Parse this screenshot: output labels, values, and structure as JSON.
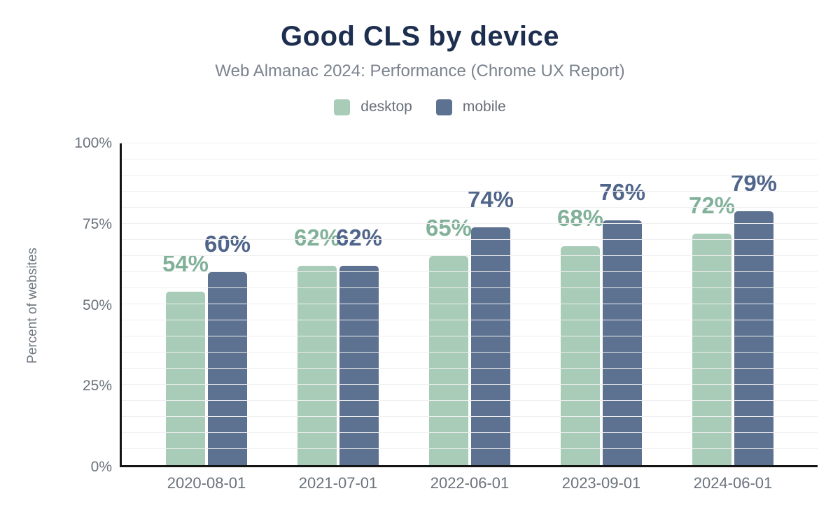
{
  "header": {
    "title": "Good CLS by device",
    "subtitle": "Web Almanac 2024: Performance (Chrome UX Report)"
  },
  "legend": {
    "items": [
      {
        "label": "desktop",
        "color": "#a9ccb9"
      },
      {
        "label": "mobile",
        "color": "#5d7190"
      }
    ]
  },
  "colors": {
    "title": "#1d2e4e",
    "subtitle": "#7b838e",
    "axis": "#141414",
    "gridline": "#efefef",
    "tick_text": "#6a727c",
    "desktop_bar": "#a9ccb9",
    "mobile_bar": "#5d7190",
    "desktop_label": "#82b199",
    "mobile_label": "#50658a"
  },
  "chart_data": {
    "type": "bar",
    "title": "Good CLS by device",
    "subtitle": "Web Almanac 2024: Performance (Chrome UX Report)",
    "categories": [
      "2020-08-01",
      "2021-07-01",
      "2022-06-01",
      "2023-09-01",
      "2024-06-01"
    ],
    "series": [
      {
        "name": "desktop",
        "values": [
          54,
          62,
          65,
          68,
          72
        ],
        "data_labels": [
          "54%",
          "62%",
          "65%",
          "68%",
          "72%"
        ],
        "bar_color": "#a9ccb9",
        "label_color": "#82b199"
      },
      {
        "name": "mobile",
        "values": [
          60,
          62,
          74,
          76,
          79
        ],
        "data_labels": [
          "60%",
          "62%",
          "74%",
          "76%",
          "79%"
        ],
        "bar_color": "#5d7190",
        "label_color": "#50658a"
      }
    ],
    "xlabel": "",
    "ylabel": "Percent of websites",
    "ylim": [
      0,
      100
    ],
    "yticks": [
      0,
      25,
      50,
      75,
      100
    ],
    "ytick_labels": [
      "0%",
      "25%",
      "50%",
      "75%",
      "100%"
    ],
    "grid": "horizontal minor gridlines every 5%",
    "legend_position": "top center"
  }
}
